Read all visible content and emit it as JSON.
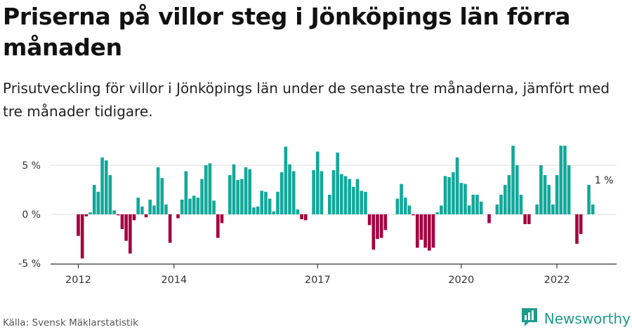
{
  "title": "Priserna på villor steg i Jönköpings län förra månaden",
  "subtitle": "Prisutveckling för villor i Jönköpings län under de senaste tre månaderna, jämfört med tre månader tidigare.",
  "source": "Källa: Svensk Mäklarstatistik",
  "brand": {
    "name": "Newsworthy",
    "icon": "newsworthy-logo-icon"
  },
  "colors": {
    "positive": "#12a89a",
    "negative": "#a3003f",
    "grid": "#dddddd",
    "axis": "#333333"
  },
  "chart_data": {
    "type": "bar",
    "title": "Priserna på villor steg i Jönköpings län förra månaden",
    "xlabel": "",
    "ylabel": "",
    "ylim": [
      -5,
      7
    ],
    "grid": true,
    "y_ticks": [
      5,
      0,
      -5
    ],
    "y_tick_labels": [
      "5 %",
      "0 %",
      "-5 %"
    ],
    "x_ticks": [
      2012,
      2014,
      2017,
      2020,
      2022
    ],
    "x_tick_labels": [
      "2012",
      "2014",
      "2017",
      "2020",
      "2022"
    ],
    "start": "2012-01",
    "frequency": "monthly",
    "last_value_label": "1 %",
    "values": [
      -2.2,
      -4.5,
      -0.2,
      0.2,
      3.0,
      2.3,
      5.8,
      5.5,
      4.0,
      0.4,
      -0.1,
      -1.5,
      -2.7,
      -4.0,
      -0.6,
      1.7,
      0.8,
      -0.3,
      1.5,
      0.9,
      4.8,
      3.7,
      1.0,
      -2.9,
      0.0,
      -0.4,
      1.5,
      4.4,
      1.6,
      1.9,
      1.7,
      3.6,
      5.0,
      5.2,
      1.4,
      -2.4,
      -0.9,
      0.0,
      4.0,
      5.1,
      3.5,
      3.6,
      4.8,
      4.6,
      0.7,
      0.8,
      2.4,
      2.3,
      1.6,
      0.3,
      2.3,
      4.3,
      6.9,
      5.1,
      4.4,
      0.5,
      -0.5,
      -0.6,
      0.0,
      4.5,
      6.4,
      4.4,
      0.0,
      2.0,
      4.5,
      6.3,
      4.1,
      3.9,
      3.6,
      2.8,
      3.6,
      2.4,
      2.3,
      -1.1,
      -3.6,
      -2.5,
      -2.4,
      -1.6,
      0.0,
      0.0,
      1.6,
      3.1,
      1.7,
      0.9,
      -0.1,
      -3.4,
      -2.6,
      -3.4,
      -3.7,
      -3.4,
      0.2,
      0.9,
      3.9,
      3.8,
      4.3,
      5.8,
      3.2,
      3.1,
      0.9,
      2.0,
      2.0,
      1.3,
      0.0,
      -0.9,
      0.0,
      1.0,
      2.0,
      3.0,
      4.0,
      7.0,
      5.0,
      2.0,
      -1.0,
      -1.0,
      0.0,
      1.0,
      5.0,
      4.0,
      3.0,
      1.0,
      4.0,
      7.0,
      7.0,
      5.0,
      0.0,
      -3.0,
      -2.0,
      0.0,
      3.0,
      1.0
    ]
  }
}
